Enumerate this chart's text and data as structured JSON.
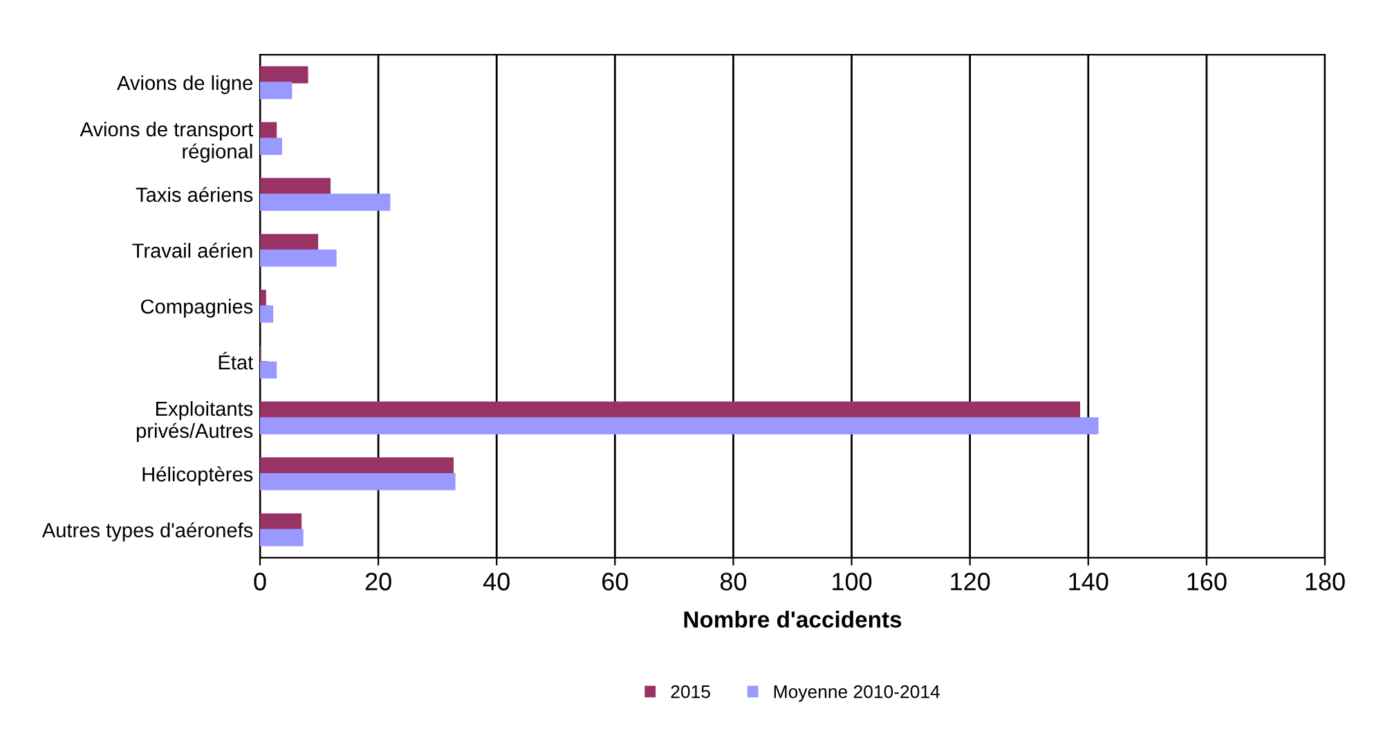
{
  "chart_data": {
    "type": "bar",
    "orientation": "horizontal",
    "xlabel": "Nombre d'accidents",
    "categories": [
      "Avions de ligne",
      "Avions de transport\nrégional",
      "Taxis aériens",
      "Travail aérien",
      "Compagnies",
      "État",
      "Exploitants\nprivés/Autres",
      "Hélicoptères",
      "Autres types d'aéronefs"
    ],
    "series": [
      {
        "name": "2015",
        "color": "#993366",
        "values": [
          8,
          2.7,
          11.8,
          9.7,
          0.9,
          0,
          138.5,
          32.6,
          6.9
        ]
      },
      {
        "name": "Moyenne 2010-2014",
        "color": "#9999ff",
        "values": [
          5.3,
          3.6,
          21.9,
          12.8,
          2.1,
          2.7,
          141.6,
          32.9,
          7.2
        ]
      }
    ],
    "xlim": [
      0,
      180
    ],
    "xticks": [
      0,
      20,
      40,
      60,
      80,
      100,
      120,
      140,
      160,
      180
    ],
    "grid": "x",
    "legend": "bottom"
  }
}
